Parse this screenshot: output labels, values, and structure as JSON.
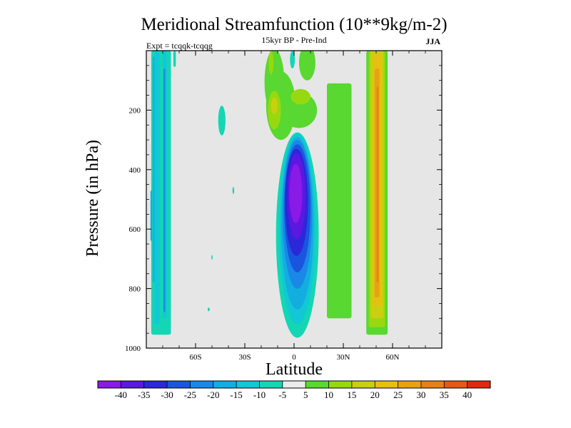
{
  "chart_data": {
    "type": "heatmap",
    "title": "Meridional Streamfunction (10**9kg/m-2)",
    "subtitle": "15kyr BP - Pre-Ind",
    "experiment_label": "Expt = tcqqk-tcqqg",
    "season": "JJA",
    "xlabel": "Latitude",
    "ylabel": "Pressure (in hPa)",
    "xlim": [
      -90,
      90
    ],
    "ylim": [
      1000,
      0
    ],
    "x_ticks": [
      {
        "value": -60,
        "label": "60S"
      },
      {
        "value": -30,
        "label": "30S"
      },
      {
        "value": 0,
        "label": "0"
      },
      {
        "value": 30,
        "label": "30N"
      },
      {
        "value": 60,
        "label": "60N"
      }
    ],
    "y_ticks": [
      {
        "value": 200,
        "label": "200"
      },
      {
        "value": 400,
        "label": "400"
      },
      {
        "value": 600,
        "label": "600"
      },
      {
        "value": 800,
        "label": "800"
      },
      {
        "value": 1000,
        "label": "1000"
      }
    ],
    "colorbar": {
      "levels": [
        -40,
        -35,
        -30,
        -25,
        -20,
        -15,
        -10,
        -5,
        5,
        10,
        15,
        20,
        25,
        30,
        35,
        40
      ],
      "labels": [
        "-40",
        "-35",
        "-30",
        "-25",
        "-20",
        "-15",
        "-10",
        "-5",
        "5",
        "10",
        "15",
        "20",
        "25",
        "30",
        "35",
        "40"
      ],
      "colors": [
        "#8a1ae6",
        "#5a18e0",
        "#2a28d8",
        "#1a55de",
        "#1a88e6",
        "#12aee0",
        "#12c8d4",
        "#14d6b4",
        "#ebebeb",
        "#58d830",
        "#98d810",
        "#c8d010",
        "#e6c010",
        "#e6a214",
        "#e6801a",
        "#e4581a",
        "#e02810"
      ]
    },
    "background_color": "#e6e6e6",
    "anomaly_features": [
      {
        "name": "tropical-negative-cell",
        "lat": [
          -10,
          12
        ],
        "pressure": [
          300,
          960
        ],
        "min_value": -40,
        "center": [
          2,
          480
        ]
      },
      {
        "name": "upper-positive-cell",
        "lat": [
          -15,
          10
        ],
        "pressure": [
          0,
          300
        ],
        "max_value": 15
      },
      {
        "name": "nh-positive-band",
        "lat": [
          44,
          56
        ],
        "pressure": [
          0,
          950
        ],
        "max_value": 40,
        "center": [
          50,
          500
        ]
      },
      {
        "name": "nh-weak-positive-band",
        "lat": [
          20,
          35
        ],
        "pressure": [
          110,
          900
        ],
        "max_value": 10
      },
      {
        "name": "sh-negative-bands",
        "lat": [
          -88,
          -75
        ],
        "pressure": [
          0,
          950
        ],
        "min_value": -25
      }
    ]
  }
}
